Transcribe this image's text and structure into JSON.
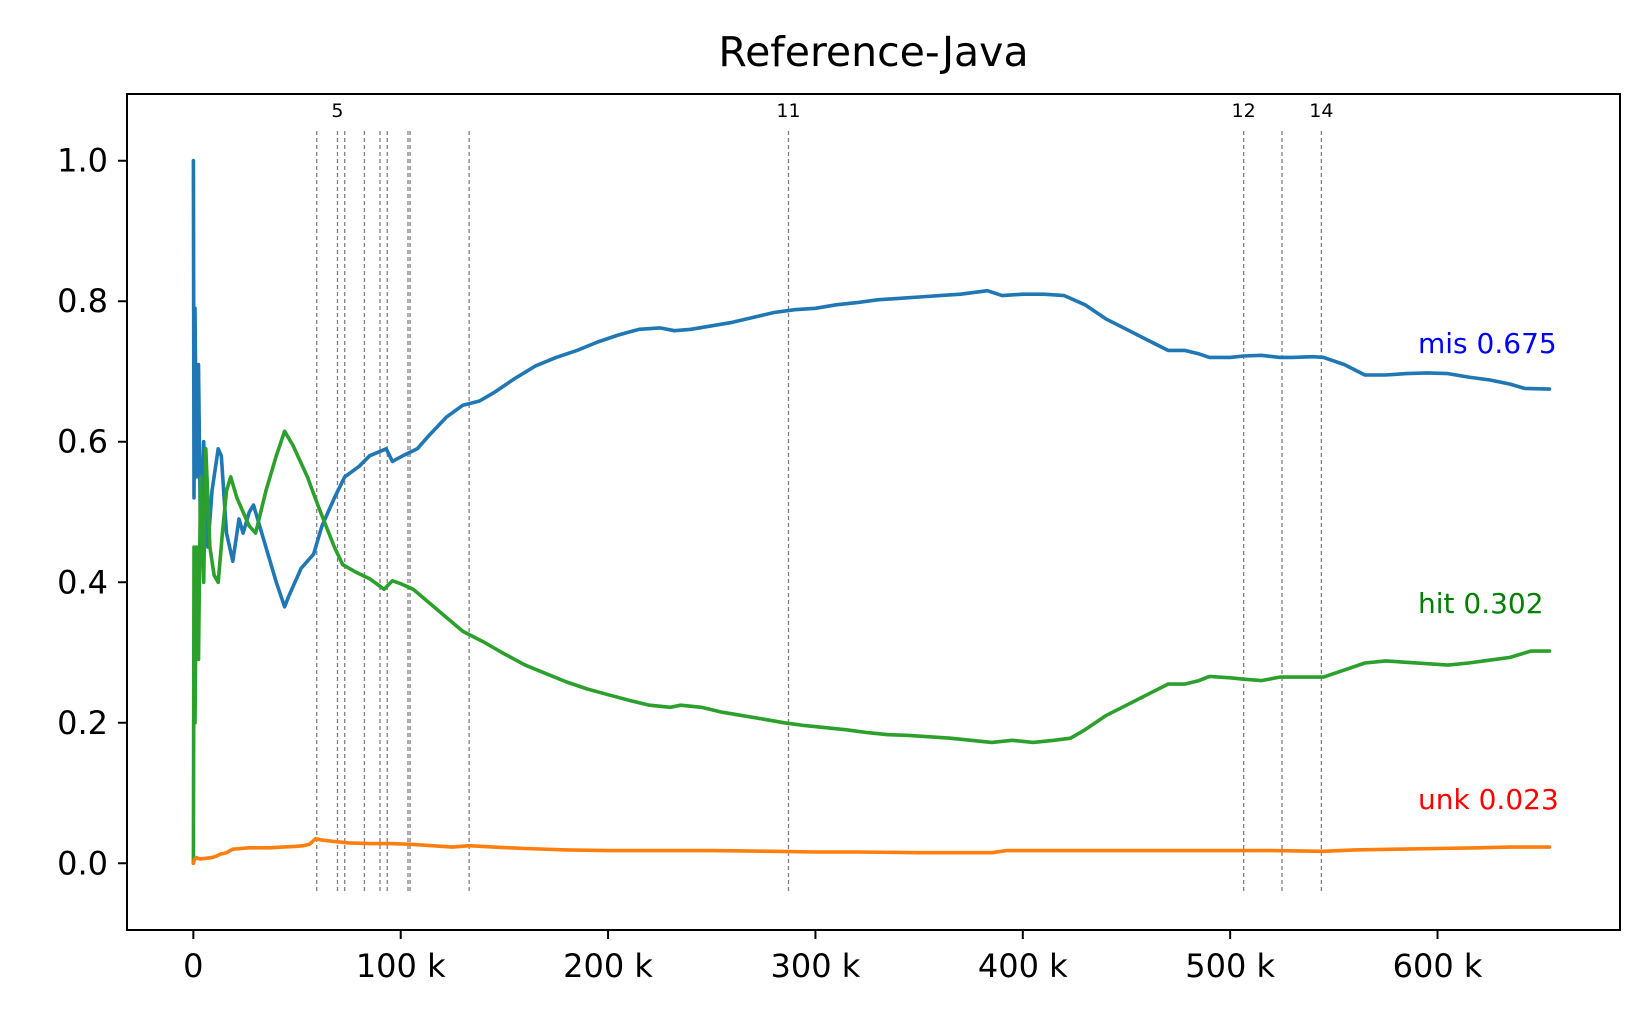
{
  "chart_data": {
    "type": "line",
    "title": "Reference-Java",
    "xlabel": "",
    "ylabel": "",
    "xlim": [
      -32000,
      688000
    ],
    "ylim": [
      -0.095,
      1.095
    ],
    "grid": false,
    "x_ticks": [
      {
        "value": 0,
        "label": "0"
      },
      {
        "value": 100000,
        "label": "100 k"
      },
      {
        "value": 200000,
        "label": "200 k"
      },
      {
        "value": 300000,
        "label": "300 k"
      },
      {
        "value": 400000,
        "label": "400 k"
      },
      {
        "value": 500000,
        "label": "500 k"
      },
      {
        "value": 600000,
        "label": "600 k"
      }
    ],
    "y_ticks": [
      {
        "value": 0.0,
        "label": "0.0"
      },
      {
        "value": 0.2,
        "label": "0.2"
      },
      {
        "value": 0.4,
        "label": "0.4"
      },
      {
        "value": 0.6,
        "label": "0.6"
      },
      {
        "value": 0.8,
        "label": "0.8"
      },
      {
        "value": 1.0,
        "label": "1.0"
      }
    ],
    "vertical_markers": [
      {
        "x": 59500,
        "label": ""
      },
      {
        "x": 69500,
        "label": "5"
      },
      {
        "x": 73000,
        "label": ""
      },
      {
        "x": 82500,
        "label": ""
      },
      {
        "x": 90000,
        "label": ""
      },
      {
        "x": 93500,
        "label": ""
      },
      {
        "x": 103500,
        "label": ""
      },
      {
        "x": 104500,
        "label": ""
      },
      {
        "x": 133000,
        "label": ""
      },
      {
        "x": 287000,
        "label": "11"
      },
      {
        "x": 506500,
        "label": "12"
      },
      {
        "x": 525000,
        "label": ""
      },
      {
        "x": 544000,
        "label": "14"
      }
    ],
    "series": [
      {
        "name": "mis",
        "color": "#1f77b4",
        "end_label": "mis 0.675",
        "end_label_color": "#0000ff",
        "points": [
          [
            0,
            1.0
          ],
          [
            300,
            0.52
          ],
          [
            800,
            0.79
          ],
          [
            1500,
            0.55
          ],
          [
            2500,
            0.71
          ],
          [
            3500,
            0.45
          ],
          [
            5000,
            0.6
          ],
          [
            7000,
            0.45
          ],
          [
            9000,
            0.53
          ],
          [
            12000,
            0.59
          ],
          [
            13500,
            0.58
          ],
          [
            16000,
            0.47
          ],
          [
            19000,
            0.43
          ],
          [
            22000,
            0.49
          ],
          [
            24000,
            0.47
          ],
          [
            27000,
            0.5
          ],
          [
            29000,
            0.51
          ],
          [
            31000,
            0.49
          ],
          [
            35000,
            0.45
          ],
          [
            40000,
            0.4
          ],
          [
            44000,
            0.365
          ],
          [
            46000,
            0.38
          ],
          [
            52000,
            0.42
          ],
          [
            58000,
            0.44
          ],
          [
            62000,
            0.48
          ],
          [
            68000,
            0.52
          ],
          [
            73000,
            0.55
          ],
          [
            80000,
            0.565
          ],
          [
            85000,
            0.58
          ],
          [
            93000,
            0.59
          ],
          [
            96000,
            0.572
          ],
          [
            101000,
            0.58
          ],
          [
            108000,
            0.59
          ],
          [
            114000,
            0.61
          ],
          [
            122000,
            0.635
          ],
          [
            130000,
            0.652
          ],
          [
            138000,
            0.658
          ],
          [
            145000,
            0.67
          ],
          [
            155000,
            0.69
          ],
          [
            165000,
            0.708
          ],
          [
            175000,
            0.72
          ],
          [
            185000,
            0.73
          ],
          [
            195000,
            0.742
          ],
          [
            205000,
            0.752
          ],
          [
            215000,
            0.76
          ],
          [
            225000,
            0.762
          ],
          [
            232000,
            0.758
          ],
          [
            240000,
            0.76
          ],
          [
            250000,
            0.765
          ],
          [
            260000,
            0.77
          ],
          [
            270000,
            0.777
          ],
          [
            280000,
            0.784
          ],
          [
            290000,
            0.788
          ],
          [
            300000,
            0.79
          ],
          [
            310000,
            0.795
          ],
          [
            320000,
            0.798
          ],
          [
            330000,
            0.802
          ],
          [
            340000,
            0.804
          ],
          [
            350000,
            0.806
          ],
          [
            360000,
            0.808
          ],
          [
            370000,
            0.81
          ],
          [
            383000,
            0.815
          ],
          [
            390000,
            0.808
          ],
          [
            400000,
            0.81
          ],
          [
            410000,
            0.81
          ],
          [
            420000,
            0.808
          ],
          [
            430000,
            0.795
          ],
          [
            440000,
            0.775
          ],
          [
            450000,
            0.76
          ],
          [
            460000,
            0.745
          ],
          [
            470000,
            0.73
          ],
          [
            478000,
            0.73
          ],
          [
            485000,
            0.725
          ],
          [
            490000,
            0.72
          ],
          [
            500000,
            0.72
          ],
          [
            506500,
            0.722
          ],
          [
            515000,
            0.723
          ],
          [
            524000,
            0.72
          ],
          [
            530000,
            0.72
          ],
          [
            540000,
            0.721
          ],
          [
            545000,
            0.72
          ],
          [
            555000,
            0.71
          ],
          [
            565000,
            0.695
          ],
          [
            575000,
            0.695
          ],
          [
            585000,
            0.697
          ],
          [
            595000,
            0.698
          ],
          [
            605000,
            0.697
          ],
          [
            615000,
            0.692
          ],
          [
            625000,
            0.688
          ],
          [
            635000,
            0.682
          ],
          [
            642000,
            0.676
          ],
          [
            654000,
            0.675
          ]
        ]
      },
      {
        "name": "hit",
        "color": "#2ca02c",
        "end_label": "hit 0.302",
        "end_label_color": "#008000",
        "points": [
          [
            0,
            0.0
          ],
          [
            300,
            0.45
          ],
          [
            800,
            0.2
          ],
          [
            1500,
            0.45
          ],
          [
            2500,
            0.29
          ],
          [
            3500,
            0.55
          ],
          [
            5000,
            0.4
          ],
          [
            6000,
            0.59
          ],
          [
            8000,
            0.45
          ],
          [
            10000,
            0.41
          ],
          [
            12000,
            0.4
          ],
          [
            14000,
            0.47
          ],
          [
            16000,
            0.53
          ],
          [
            18000,
            0.55
          ],
          [
            21000,
            0.52
          ],
          [
            24000,
            0.5
          ],
          [
            27000,
            0.48
          ],
          [
            30000,
            0.47
          ],
          [
            35000,
            0.53
          ],
          [
            40000,
            0.58
          ],
          [
            44000,
            0.615
          ],
          [
            48000,
            0.595
          ],
          [
            55000,
            0.55
          ],
          [
            60000,
            0.51
          ],
          [
            64000,
            0.48
          ],
          [
            68000,
            0.45
          ],
          [
            72000,
            0.425
          ],
          [
            78000,
            0.415
          ],
          [
            85000,
            0.405
          ],
          [
            92000,
            0.39
          ],
          [
            96000,
            0.402
          ],
          [
            100000,
            0.398
          ],
          [
            106000,
            0.39
          ],
          [
            112000,
            0.375
          ],
          [
            120000,
            0.355
          ],
          [
            130000,
            0.33
          ],
          [
            140000,
            0.315
          ],
          [
            150000,
            0.298
          ],
          [
            160000,
            0.282
          ],
          [
            170000,
            0.27
          ],
          [
            180000,
            0.258
          ],
          [
            190000,
            0.248
          ],
          [
            200000,
            0.24
          ],
          [
            210000,
            0.232
          ],
          [
            220000,
            0.225
          ],
          [
            230000,
            0.222
          ],
          [
            235000,
            0.225
          ],
          [
            245000,
            0.222
          ],
          [
            255000,
            0.215
          ],
          [
            265000,
            0.21
          ],
          [
            275000,
            0.205
          ],
          [
            285000,
            0.2
          ],
          [
            295000,
            0.196
          ],
          [
            305000,
            0.193
          ],
          [
            315000,
            0.19
          ],
          [
            325000,
            0.186
          ],
          [
            335000,
            0.183
          ],
          [
            345000,
            0.182
          ],
          [
            355000,
            0.18
          ],
          [
            365000,
            0.178
          ],
          [
            375000,
            0.175
          ],
          [
            385000,
            0.172
          ],
          [
            395000,
            0.175
          ],
          [
            405000,
            0.172
          ],
          [
            415000,
            0.175
          ],
          [
            423000,
            0.178
          ],
          [
            430000,
            0.19
          ],
          [
            440000,
            0.21
          ],
          [
            450000,
            0.225
          ],
          [
            460000,
            0.24
          ],
          [
            470000,
            0.255
          ],
          [
            478000,
            0.255
          ],
          [
            485000,
            0.26
          ],
          [
            490000,
            0.266
          ],
          [
            500000,
            0.264
          ],
          [
            506500,
            0.262
          ],
          [
            515000,
            0.26
          ],
          [
            524000,
            0.265
          ],
          [
            530000,
            0.265
          ],
          [
            545000,
            0.265
          ],
          [
            555000,
            0.275
          ],
          [
            565000,
            0.285
          ],
          [
            575000,
            0.288
          ],
          [
            585000,
            0.286
          ],
          [
            595000,
            0.284
          ],
          [
            605000,
            0.282
          ],
          [
            615000,
            0.285
          ],
          [
            625000,
            0.289
          ],
          [
            635000,
            0.293
          ],
          [
            645000,
            0.302
          ],
          [
            654000,
            0.302
          ]
        ]
      },
      {
        "name": "unk",
        "color": "#ff7f0e",
        "end_label": "unk 0.023",
        "end_label_color": "#ff0000",
        "points": [
          [
            0,
            0.0
          ],
          [
            500,
            0.005
          ],
          [
            1500,
            0.008
          ],
          [
            3000,
            0.006
          ],
          [
            6000,
            0.007
          ],
          [
            9000,
            0.008
          ],
          [
            11000,
            0.01
          ],
          [
            13000,
            0.013
          ],
          [
            16000,
            0.015
          ],
          [
            19000,
            0.02
          ],
          [
            23000,
            0.021
          ],
          [
            27000,
            0.022
          ],
          [
            31000,
            0.022
          ],
          [
            37000,
            0.022
          ],
          [
            43000,
            0.023
          ],
          [
            49000,
            0.024
          ],
          [
            53000,
            0.025
          ],
          [
            56000,
            0.027
          ],
          [
            59000,
            0.035
          ],
          [
            62000,
            0.033
          ],
          [
            68000,
            0.031
          ],
          [
            75000,
            0.029
          ],
          [
            85000,
            0.028
          ],
          [
            95000,
            0.028
          ],
          [
            105000,
            0.027
          ],
          [
            115000,
            0.025
          ],
          [
            125000,
            0.023
          ],
          [
            133000,
            0.025
          ],
          [
            145000,
            0.023
          ],
          [
            160000,
            0.021
          ],
          [
            180000,
            0.019
          ],
          [
            200000,
            0.018
          ],
          [
            220000,
            0.018
          ],
          [
            250000,
            0.018
          ],
          [
            280000,
            0.017
          ],
          [
            300000,
            0.016
          ],
          [
            320000,
            0.016
          ],
          [
            350000,
            0.015
          ],
          [
            370000,
            0.015
          ],
          [
            385000,
            0.015
          ],
          [
            392000,
            0.018
          ],
          [
            410000,
            0.018
          ],
          [
            430000,
            0.018
          ],
          [
            460000,
            0.018
          ],
          [
            480000,
            0.018
          ],
          [
            500000,
            0.018
          ],
          [
            520000,
            0.018
          ],
          [
            545000,
            0.017
          ],
          [
            560000,
            0.019
          ],
          [
            580000,
            0.02
          ],
          [
            600000,
            0.021
          ],
          [
            620000,
            0.022
          ],
          [
            635000,
            0.023
          ],
          [
            654000,
            0.023
          ]
        ]
      }
    ]
  }
}
